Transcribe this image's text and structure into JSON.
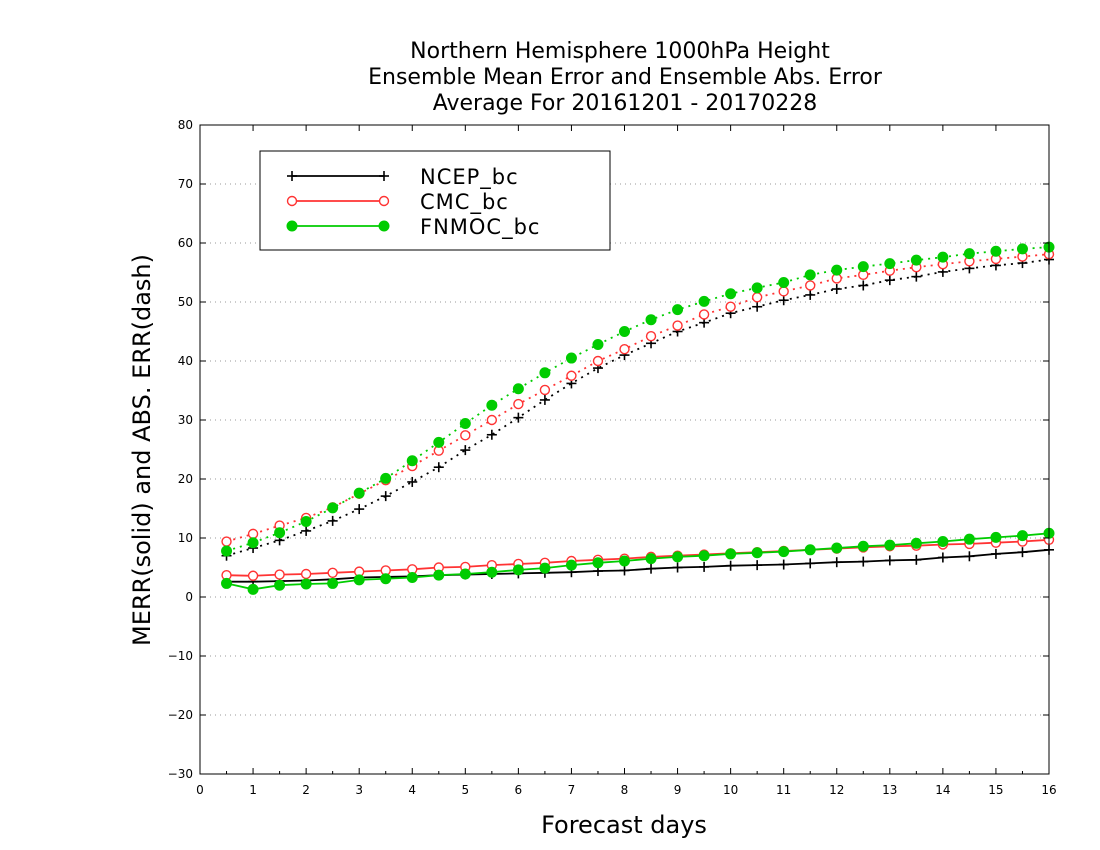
{
  "chart_data": {
    "type": "line",
    "title": [
      "Northern Hemisphere 1000hPa Height",
      "Ensemble Mean Error and Ensemble Abs. Error",
      "Average For 20161201 - 20170228"
    ],
    "xlabel": "Forecast days",
    "ylabel": "MERR(solid) and ABS. ERR(dash)",
    "xlim": [
      0,
      16
    ],
    "ylim": [
      -30,
      80
    ],
    "xticks": [
      "0",
      "1",
      "2",
      "3",
      "4",
      "5",
      "6",
      "7",
      "8",
      "9",
      "10",
      "11",
      "12",
      "13",
      "14",
      "15",
      "16"
    ],
    "yticks": [
      "80",
      "70",
      "60",
      "50",
      "40",
      "30",
      "20",
      "10",
      "0",
      "−10",
      "−20",
      "−30"
    ],
    "grid": "horizontal dotted",
    "legend_position": "top-left",
    "x": [
      0.5,
      1,
      1.5,
      2,
      2.5,
      3,
      3.5,
      4,
      4.5,
      5,
      5.5,
      6,
      6.5,
      7,
      7.5,
      8,
      8.5,
      9,
      9.5,
      10,
      10.5,
      11,
      11.5,
      12,
      12.5,
      13,
      13.5,
      14,
      14.5,
      15,
      15.5,
      16
    ],
    "series": [
      {
        "name": "NCEP_bc",
        "color": "#000000",
        "marker": "plus",
        "merr": [
          2.6,
          2.6,
          2.7,
          2.8,
          3.0,
          3.3,
          3.4,
          3.5,
          3.7,
          3.8,
          3.9,
          4.0,
          4.1,
          4.2,
          4.4,
          4.5,
          4.8,
          5.0,
          5.1,
          5.3,
          5.4,
          5.5,
          5.7,
          5.9,
          6.0,
          6.2,
          6.3,
          6.7,
          6.9,
          7.3,
          7.6,
          8.0
        ],
        "abs_err": [
          7.0,
          8.3,
          9.6,
          11.2,
          12.9,
          14.9,
          17.1,
          19.5,
          22.0,
          24.9,
          27.5,
          30.4,
          33.4,
          36.2,
          38.8,
          41.0,
          43.0,
          45.0,
          46.5,
          48.1,
          49.2,
          50.3,
          51.2,
          52.2,
          52.8,
          53.7,
          54.3,
          55.1,
          55.7,
          56.2,
          56.6,
          57.2
        ]
      },
      {
        "name": "CMC_bc",
        "color": "#ff3333",
        "marker": "open-circle",
        "merr": [
          3.7,
          3.6,
          3.8,
          3.9,
          4.1,
          4.3,
          4.5,
          4.7,
          5.0,
          5.1,
          5.4,
          5.6,
          5.8,
          6.1,
          6.3,
          6.5,
          6.8,
          7.0,
          7.2,
          7.4,
          7.6,
          7.8,
          8.0,
          8.2,
          8.4,
          8.6,
          8.7,
          8.9,
          9.0,
          9.2,
          9.4,
          9.7
        ],
        "abs_err": [
          9.4,
          10.7,
          12.1,
          13.4,
          15.2,
          17.5,
          19.8,
          22.2,
          24.8,
          27.4,
          30.0,
          32.7,
          35.1,
          37.5,
          40.0,
          42.0,
          44.2,
          46.0,
          47.9,
          49.2,
          50.8,
          51.8,
          52.8,
          54.0,
          54.6,
          55.3,
          55.9,
          56.4,
          56.9,
          57.3,
          57.7,
          58.1
        ]
      },
      {
        "name": "FNMOC_bc",
        "color": "#00cc00",
        "marker": "filled-circle",
        "merr": [
          2.3,
          1.3,
          2.0,
          2.2,
          2.3,
          2.9,
          3.1,
          3.3,
          3.7,
          3.9,
          4.2,
          4.6,
          4.9,
          5.4,
          5.8,
          6.1,
          6.5,
          6.8,
          7.0,
          7.3,
          7.5,
          7.7,
          8.0,
          8.3,
          8.6,
          8.8,
          9.1,
          9.4,
          9.8,
          10.1,
          10.4,
          10.8
        ],
        "abs_err": [
          7.8,
          9.2,
          10.9,
          12.8,
          15.1,
          17.6,
          20.1,
          23.1,
          26.2,
          29.4,
          32.5,
          35.3,
          38.0,
          40.5,
          42.8,
          45.0,
          47.0,
          48.7,
          50.1,
          51.4,
          52.4,
          53.3,
          54.6,
          55.4,
          56.0,
          56.5,
          57.1,
          57.6,
          58.2,
          58.6,
          59.0,
          59.3
        ]
      }
    ]
  }
}
